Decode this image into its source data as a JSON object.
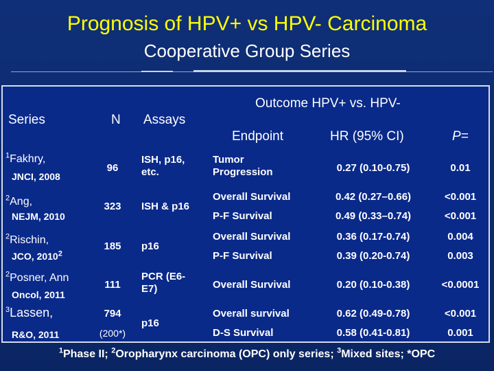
{
  "slide": {
    "title": "Prognosis of HPV+ vs HPV- Carcinoma",
    "subtitle": "Cooperative Group Series"
  },
  "table": {
    "headers": {
      "series": "Series",
      "n": "N",
      "assays": "Assays",
      "outcome": "Outcome HPV+ vs. HPV-",
      "endpoint": "Endpoint",
      "hr": "HR (95% CI)",
      "p": "P="
    },
    "rows": [
      {
        "sup": "1",
        "name": "Fakhry,",
        "journal": "JNCI, 2008",
        "journal_sup": "",
        "n": "96",
        "n_note": "",
        "assays": "ISH, p16, etc.",
        "outcomes": [
          {
            "endpoint": "Tumor Progression",
            "hr": "0.27 (0.10-0.75)",
            "p": "0.01"
          }
        ]
      },
      {
        "sup": "2",
        "name": "Ang,",
        "journal": "NEJM, 2010",
        "journal_sup": "",
        "n": "323",
        "n_note": "",
        "assays": "ISH & p16",
        "outcomes": [
          {
            "endpoint": "Overall Survival",
            "hr": "0.42 (0.27–0.66)",
            "p": "<0.001"
          },
          {
            "endpoint": "P-F Survival",
            "hr": "0.49 (0.33–0.74)",
            "p": "<0.001"
          }
        ]
      },
      {
        "sup": "2",
        "name": "Rischin,",
        "journal": "JCO, 2010",
        "journal_sup": "2",
        "n": "185",
        "n_note": "",
        "assays": "p16",
        "outcomes": [
          {
            "endpoint": "Overall Survival",
            "hr": "0.36 (0.17-0.74)",
            "p": "0.004"
          },
          {
            "endpoint": "P-F Survival",
            "hr": "0.39 (0.20-0.74)",
            "p": "0.003"
          }
        ]
      },
      {
        "sup": "2",
        "name": "Posner, Ann",
        "journal": "Oncol, 2011",
        "journal_sup": "",
        "n": "111",
        "n_note": "",
        "assays": "PCR (E6-E7)",
        "outcomes": [
          {
            "endpoint": "Overall Survival",
            "hr": "0.20 (0.10-0.38)",
            "p": "<0.0001"
          }
        ]
      },
      {
        "sup": "3",
        "name": "Lassen,",
        "journal": "R&O, 2011",
        "journal_sup": "",
        "n": "794",
        "n_note": "(200*)",
        "assays": "p16",
        "outcomes": [
          {
            "endpoint": "Overall survival",
            "hr": "0.62 (0.49-0.78)",
            "p": "<0.001"
          },
          {
            "endpoint": "D-S Survival",
            "hr": "0.58 (0.41-0.81)",
            "p": "0.001"
          }
        ]
      }
    ]
  },
  "footnote": {
    "s1": "1",
    "t1": "Phase II; ",
    "s2": "2",
    "t2": "Oropharynx carcinoma (OPC) only series; ",
    "s3": "3",
    "t3": "Mixed sites; *OPC"
  }
}
